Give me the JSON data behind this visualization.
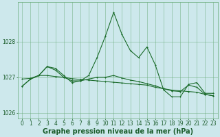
{
  "bg_color": "#cde8ec",
  "grid_color": "#66aa77",
  "line_color": "#1a6b2a",
  "xlabel": "Graphe pression niveau de la mer (hPa)",
  "ylim": [
    1025.85,
    1029.1
  ],
  "yticks": [
    1026,
    1027,
    1028
  ],
  "xticks": [
    0,
    1,
    2,
    3,
    4,
    5,
    6,
    7,
    8,
    9,
    10,
    11,
    12,
    13,
    14,
    15,
    16,
    17,
    18,
    19,
    20,
    21,
    22,
    23
  ],
  "line1": [
    1026.75,
    1026.95,
    1027.05,
    1027.3,
    1027.25,
    1027.05,
    1026.85,
    1026.9,
    1027.05,
    1027.55,
    1028.15,
    1028.82,
    1028.2,
    1027.75,
    1027.55,
    1027.85,
    1027.35,
    1026.65,
    1026.45,
    1026.45,
    1026.8,
    1026.85,
    1026.55,
    1026.55
  ],
  "line2": [
    1026.95,
    1026.97,
    1027.05,
    1027.05,
    1027.02,
    1027.0,
    1026.96,
    1026.94,
    1026.92,
    1026.9,
    1026.88,
    1026.86,
    1026.84,
    1026.82,
    1026.8,
    1026.78,
    1026.72,
    1026.68,
    1026.64,
    1026.62,
    1026.6,
    1026.58,
    1026.52,
    1026.48
  ],
  "line3": [
    1026.75,
    1026.95,
    1027.05,
    1027.3,
    1027.2,
    1027.0,
    1026.9,
    1026.9,
    1026.95,
    1027.0,
    1027.0,
    1027.05,
    1026.98,
    1026.92,
    1026.88,
    1026.82,
    1026.76,
    1026.68,
    1026.62,
    1026.6,
    1026.78,
    1026.72,
    1026.52,
    1026.48
  ],
  "font_color": "#1a5c2a",
  "xlabel_fontsize": 7,
  "tick_fontsize": 5.5
}
